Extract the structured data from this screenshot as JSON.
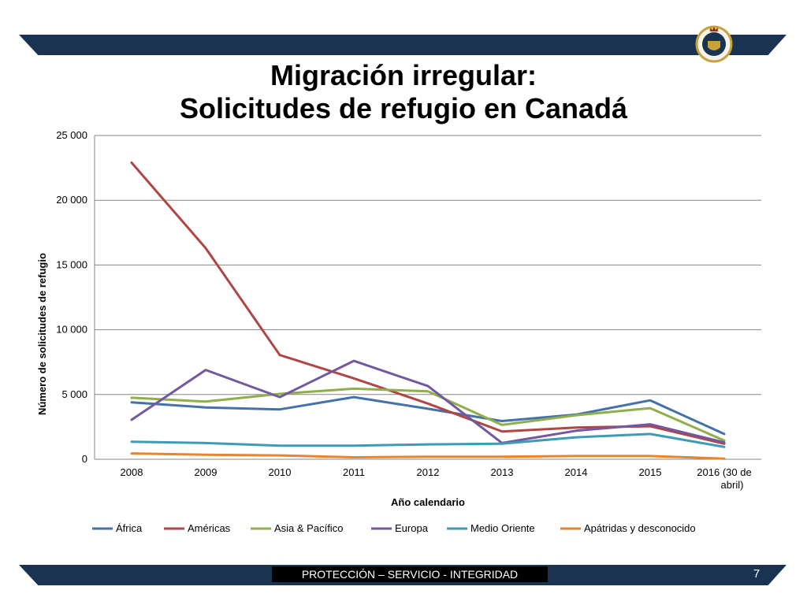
{
  "slide": {
    "title_line1": "Migración irregular:",
    "title_line2": "Solicitudes de refugio en Canadá",
    "footer_text": "PROTECCIÓN – SERVICIO - INTEGRIDAD",
    "page_number": "7",
    "colors": {
      "band": "#1a3350",
      "footer_box": "#000000"
    }
  },
  "chart_data": {
    "type": "line",
    "xlabel": "Año calendario",
    "ylabel": "Número de solicitudes de refugio",
    "categories": [
      "2008",
      "2009",
      "2010",
      "2011",
      "2012",
      "2013",
      "2014",
      "2015",
      "2016 (30 de abril)"
    ],
    "ylim": [
      0,
      25000
    ],
    "yticks": [
      0,
      5000,
      10000,
      15000,
      20000,
      25000
    ],
    "ytick_labels": [
      "0",
      "5 000",
      "10 000",
      "15 000",
      "20 000",
      "25 000"
    ],
    "grid": true,
    "legend_position": "bottom",
    "series": [
      {
        "name": "África",
        "color": "#4472a8",
        "values": [
          4400,
          4000,
          3850,
          4800,
          3900,
          2950,
          3450,
          4550,
          1950
        ]
      },
      {
        "name": "Américas",
        "color": "#b04644",
        "values": [
          22900,
          16300,
          8050,
          6250,
          4300,
          2150,
          2450,
          2550,
          1200
        ]
      },
      {
        "name": "Asia & Pacífico",
        "color": "#8fae4c",
        "values": [
          4750,
          4450,
          5050,
          5450,
          5250,
          2650,
          3400,
          3950,
          1450
        ]
      },
      {
        "name": "Europa",
        "color": "#7258a0",
        "values": [
          3050,
          6900,
          4800,
          7600,
          5650,
          1250,
          2200,
          2700,
          1300
        ]
      },
      {
        "name": "Medio Oriente",
        "color": "#3f9bb5",
        "values": [
          1350,
          1250,
          1050,
          1050,
          1150,
          1200,
          1700,
          1950,
          950
        ]
      },
      {
        "name": "Apátridas y desconocido",
        "color": "#e5852f",
        "values": [
          450,
          350,
          300,
          150,
          200,
          200,
          250,
          250,
          50
        ]
      }
    ]
  }
}
